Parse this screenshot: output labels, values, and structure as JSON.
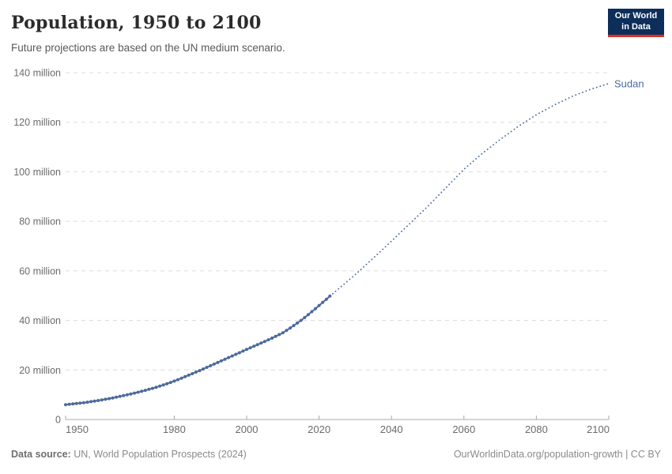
{
  "header": {
    "title": "Population, 1950 to 2100",
    "subtitle": "Future projections are based on the UN medium scenario."
  },
  "logo": {
    "line1": "Our World",
    "line2": "in Data",
    "bg_color": "#0d2e5a",
    "accent_color": "#dc3023"
  },
  "footer": {
    "source_prefix": "Data source:",
    "source": "UN, World Population Prospects (2024)",
    "right": "OurWorldinData.org/population-growth | CC BY"
  },
  "chart_data": {
    "type": "line",
    "title": "Population, 1950 to 2100",
    "subtitle": "Future projections are based on the UN medium scenario.",
    "xlabel": "",
    "ylabel": "",
    "x_range": [
      1950,
      2100
    ],
    "y_range": [
      0,
      140
    ],
    "y_unit": "million",
    "grid": "horizontal-dashed",
    "legend_position": "end-of-line-label",
    "colors": {
      "line": "#4c6a9c",
      "gridline": "#dcdcdc",
      "axis": "#a8a8a8",
      "tick_text": "#6b6b6b"
    },
    "x_ticks": [
      {
        "v": 1950,
        "label": "1950"
      },
      {
        "v": 1980,
        "label": "1980"
      },
      {
        "v": 2000,
        "label": "2000"
      },
      {
        "v": 2020,
        "label": "2020"
      },
      {
        "v": 2040,
        "label": "2040"
      },
      {
        "v": 2060,
        "label": "2060"
      },
      {
        "v": 2080,
        "label": "2080"
      },
      {
        "v": 2100,
        "label": "2100"
      }
    ],
    "y_ticks": [
      {
        "v": 0,
        "label": "0"
      },
      {
        "v": 20,
        "label": "20 million"
      },
      {
        "v": 40,
        "label": "40 million"
      },
      {
        "v": 60,
        "label": "60 million"
      },
      {
        "v": 80,
        "label": "80 million"
      },
      {
        "v": 100,
        "label": "100 million"
      },
      {
        "v": 120,
        "label": "120 million"
      },
      {
        "v": 140,
        "label": "140 million"
      }
    ],
    "series": [
      {
        "name": "Sudan",
        "color": "#4c6a9c",
        "historical_style": "solid-with-point-markers",
        "projection_style": "dotted",
        "historical": [
          [
            1950,
            5.99
          ],
          [
            1951,
            6.14
          ],
          [
            1952,
            6.29
          ],
          [
            1953,
            6.45
          ],
          [
            1954,
            6.62
          ],
          [
            1955,
            6.8
          ],
          [
            1956,
            7.0
          ],
          [
            1957,
            7.21
          ],
          [
            1958,
            7.43
          ],
          [
            1959,
            7.66
          ],
          [
            1960,
            7.9
          ],
          [
            1961,
            8.16
          ],
          [
            1962,
            8.43
          ],
          [
            1963,
            8.71
          ],
          [
            1964,
            9.0
          ],
          [
            1965,
            9.3
          ],
          [
            1966,
            9.62
          ],
          [
            1967,
            9.95
          ],
          [
            1968,
            10.29
          ],
          [
            1969,
            10.64
          ],
          [
            1970,
            11.0
          ],
          [
            1971,
            11.38
          ],
          [
            1972,
            11.77
          ],
          [
            1973,
            12.17
          ],
          [
            1974,
            12.58
          ],
          [
            1975,
            13.0
          ],
          [
            1976,
            13.47
          ],
          [
            1977,
            13.96
          ],
          [
            1978,
            14.46
          ],
          [
            1979,
            14.97
          ],
          [
            1980,
            15.5
          ],
          [
            1981,
            16.08
          ],
          [
            1982,
            16.67
          ],
          [
            1983,
            17.27
          ],
          [
            1984,
            17.88
          ],
          [
            1985,
            18.5
          ],
          [
            1986,
            19.12
          ],
          [
            1987,
            19.75
          ],
          [
            1988,
            20.39
          ],
          [
            1989,
            21.04
          ],
          [
            1990,
            21.7
          ],
          [
            1991,
            22.34
          ],
          [
            1992,
            22.99
          ],
          [
            1993,
            23.65
          ],
          [
            1994,
            24.32
          ],
          [
            1995,
            25.0
          ],
          [
            1996,
            25.65
          ],
          [
            1997,
            26.3
          ],
          [
            1998,
            26.96
          ],
          [
            1999,
            27.62
          ],
          [
            2000,
            28.3
          ],
          [
            2001,
            28.92
          ],
          [
            2002,
            29.55
          ],
          [
            2003,
            30.19
          ],
          [
            2004,
            30.84
          ],
          [
            2005,
            31.5
          ],
          [
            2006,
            32.17
          ],
          [
            2007,
            32.86
          ],
          [
            2008,
            33.56
          ],
          [
            2009,
            34.27
          ],
          [
            2010,
            35.0
          ],
          [
            2011,
            35.95
          ],
          [
            2012,
            36.93
          ],
          [
            2013,
            37.93
          ],
          [
            2014,
            38.95
          ],
          [
            2015,
            40.0
          ],
          [
            2016,
            41.15
          ],
          [
            2017,
            42.32
          ],
          [
            2018,
            43.52
          ],
          [
            2019,
            44.74
          ],
          [
            2020,
            46.0
          ],
          [
            2021,
            47.25
          ],
          [
            2022,
            48.52
          ],
          [
            2023,
            49.8
          ]
        ],
        "projection": [
          [
            2023,
            49.8
          ],
          [
            2025,
            52.3
          ],
          [
            2030,
            58.5
          ],
          [
            2035,
            65.2
          ],
          [
            2040,
            72.0
          ],
          [
            2045,
            79.0
          ],
          [
            2050,
            86.0
          ],
          [
            2055,
            93.5
          ],
          [
            2060,
            101.0
          ],
          [
            2065,
            107.3
          ],
          [
            2070,
            113.0
          ],
          [
            2075,
            118.3
          ],
          [
            2080,
            123.0
          ],
          [
            2085,
            127.0
          ],
          [
            2090,
            130.5
          ],
          [
            2095,
            133.3
          ],
          [
            2100,
            135.6
          ]
        ]
      }
    ]
  }
}
